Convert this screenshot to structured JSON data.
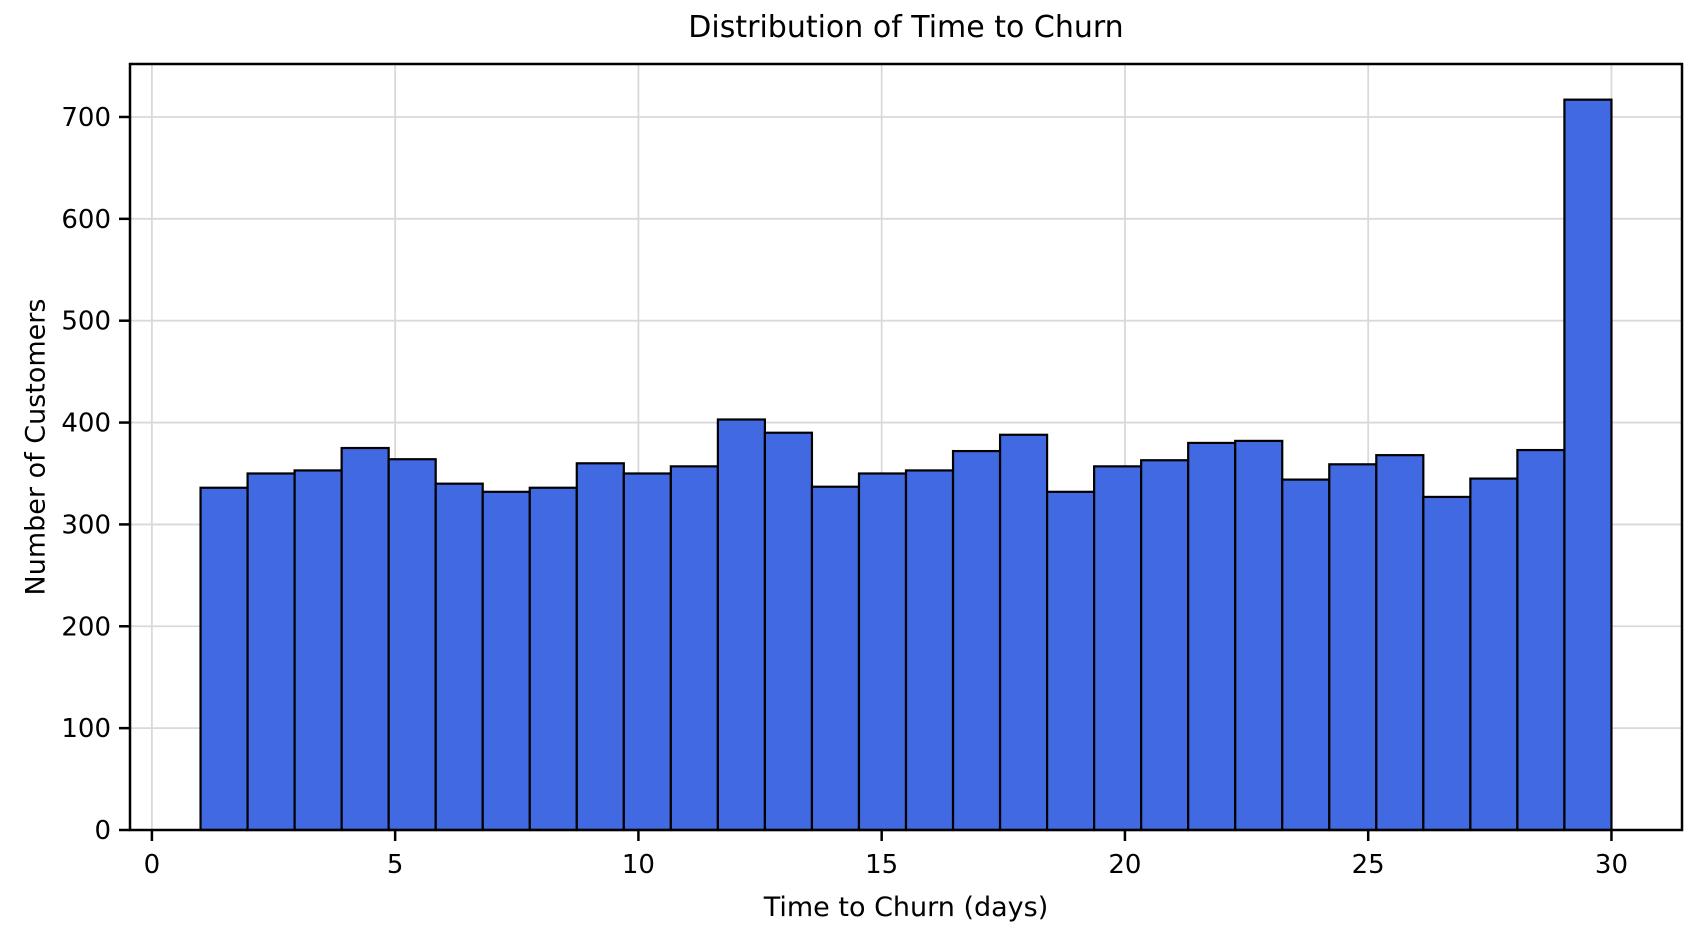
{
  "chart_data": {
    "type": "bar",
    "subtype": "histogram",
    "title": "Distribution of Time to Churn",
    "xlabel": "Time to Churn (days)",
    "ylabel": "Number of Customers",
    "bin_start": 1,
    "bin_end": 30,
    "bins": 30,
    "values": [
      336,
      350,
      353,
      375,
      364,
      340,
      332,
      336,
      360,
      350,
      357,
      403,
      390,
      337,
      350,
      353,
      372,
      388,
      332,
      357,
      363,
      380,
      382,
      344,
      359,
      368,
      327,
      345,
      373,
      717
    ],
    "xticks": [
      0,
      5,
      10,
      15,
      20,
      25,
      30
    ],
    "yticks": [
      0,
      100,
      200,
      300,
      400,
      500,
      600,
      700
    ],
    "xlim": [
      -0.45,
      31.45
    ],
    "ylim": [
      0,
      752
    ],
    "grid": true,
    "legend": null,
    "bar_color": "#4169E1",
    "bar_edge_color": "#000000",
    "grid_color": "#d9d9d9",
    "spine_color": "#000000",
    "text_color": "#000000",
    "background_color": "#ffffff"
  }
}
